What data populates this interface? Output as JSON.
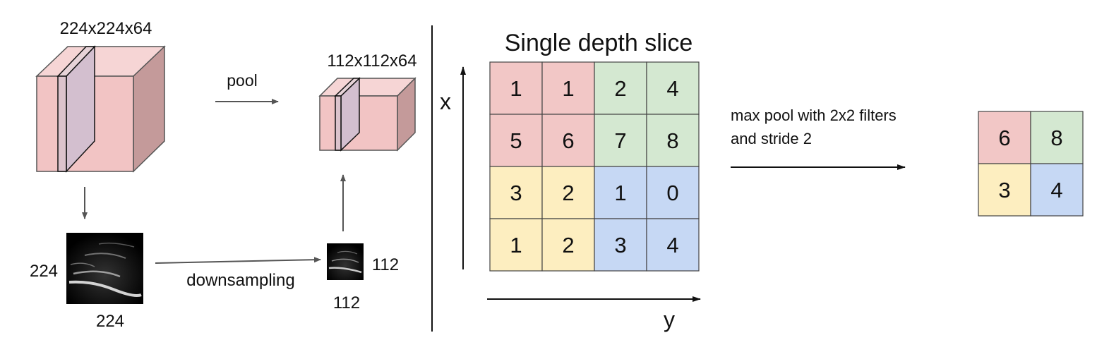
{
  "left_panel": {
    "input_volume_label": "224x224x64",
    "pool_label": "pool",
    "output_volume_label": "112x112x64",
    "input_image_height_label": "224",
    "input_image_width_label": "224",
    "downsampling_label": "downsampling",
    "output_image_height_label": "112",
    "output_image_width_label": "112"
  },
  "right_panel": {
    "title": "Single depth slice",
    "x_axis_label": "x",
    "y_axis_label": "y",
    "input_grid": [
      [
        "1",
        "1",
        "2",
        "4"
      ],
      [
        "5",
        "6",
        "7",
        "8"
      ],
      [
        "3",
        "2",
        "1",
        "0"
      ],
      [
        "1",
        "2",
        "3",
        "4"
      ]
    ],
    "operation_label_line1": "max pool with 2x2 filters",
    "operation_label_line2": "and stride 2",
    "output_grid": [
      [
        "6",
        "8"
      ],
      [
        "3",
        "4"
      ]
    ]
  },
  "colors": {
    "red_cell": "#f2c7c6",
    "green_cell": "#d4e8d1",
    "yellow_cell": "#fdeec0",
    "blue_cell": "#c6d8f4",
    "cube_front": "#f2c4c4",
    "cube_top": "#f7d6d6",
    "cube_side": "#c59a9a",
    "slice": "#d3bfcf"
  }
}
